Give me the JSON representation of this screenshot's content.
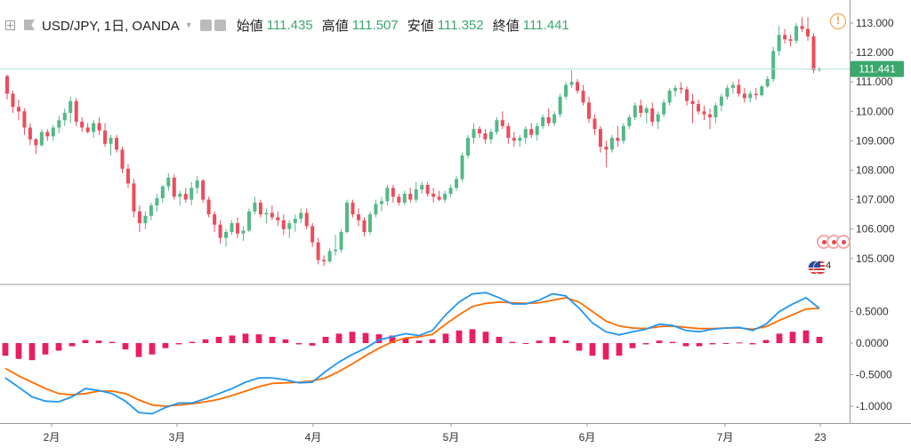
{
  "header": {
    "symbol": "USD/JPY, 1日, OANDA",
    "stats": [
      {
        "label": "始値",
        "value": "111.435"
      },
      {
        "label": "高値",
        "value": "111.507"
      },
      {
        "label": "安値",
        "value": "111.352"
      },
      {
        "label": "終値",
        "value": "111.441"
      }
    ]
  },
  "alert_icon": "!",
  "events": {
    "count": "4"
  },
  "colors": {
    "up": "#53b987",
    "down": "#eb4d5c",
    "macd": "#2196f3",
    "signal": "#ff6d00",
    "hist": "#e91e63",
    "last_price_line": "#b2dfdb",
    "last_price_tag": "#3aa76d"
  },
  "chart_data": [
    {
      "type": "candlestick",
      "y_ticks": [
        "113.000",
        "112.000",
        "111.000",
        "110.000",
        "109.000",
        "108.000",
        "107.000",
        "106.000",
        "105.000"
      ],
      "ylim": [
        104.8,
        113.3
      ],
      "x_ticks": [
        "2月",
        "3月",
        "4月",
        "5月",
        "6月",
        "7月",
        "23"
      ],
      "last_price": "111.441",
      "ohlc": [
        [
          111.2,
          111.25,
          110.4,
          110.6
        ],
        [
          110.6,
          110.7,
          109.95,
          110.15
        ],
        [
          110.15,
          110.4,
          109.7,
          110.0
        ],
        [
          110.0,
          110.1,
          109.2,
          109.45
        ],
        [
          109.45,
          109.6,
          108.85,
          109.05
        ],
        [
          109.05,
          109.1,
          108.55,
          108.85
        ],
        [
          108.85,
          109.4,
          108.8,
          109.3
        ],
        [
          109.3,
          109.4,
          109.0,
          109.15
        ],
        [
          109.15,
          109.55,
          109.0,
          109.45
        ],
        [
          109.45,
          109.85,
          109.25,
          109.7
        ],
        [
          109.7,
          110.1,
          109.5,
          109.95
        ],
        [
          109.95,
          110.5,
          109.6,
          110.35
        ],
        [
          110.35,
          110.45,
          109.5,
          109.65
        ],
        [
          109.65,
          109.8,
          109.3,
          109.45
        ],
        [
          109.45,
          109.6,
          109.25,
          109.3
        ],
        [
          109.3,
          109.7,
          109.1,
          109.6
        ],
        [
          109.6,
          109.8,
          109.2,
          109.35
        ],
        [
          109.35,
          109.6,
          108.8,
          108.9
        ],
        [
          108.9,
          109.2,
          108.5,
          109.1
        ],
        [
          109.1,
          109.2,
          108.6,
          108.7
        ],
        [
          108.7,
          108.8,
          107.9,
          108.05
        ],
        [
          108.05,
          108.2,
          107.4,
          107.55
        ],
        [
          107.55,
          107.7,
          106.4,
          106.6
        ],
        [
          106.6,
          106.8,
          105.9,
          106.2
        ],
        [
          106.2,
          106.6,
          106.0,
          106.45
        ],
        [
          106.45,
          106.9,
          106.3,
          106.8
        ],
        [
          106.8,
          107.2,
          106.6,
          107.05
        ],
        [
          107.05,
          107.5,
          106.9,
          107.45
        ],
        [
          107.45,
          107.9,
          107.3,
          107.75
        ],
        [
          107.75,
          107.85,
          107.0,
          107.1
        ],
        [
          107.1,
          107.3,
          106.8,
          107.2
        ],
        [
          107.2,
          107.4,
          106.9,
          107.0
        ],
        [
          107.0,
          107.6,
          106.8,
          107.4
        ],
        [
          107.4,
          107.8,
          107.2,
          107.65
        ],
        [
          107.65,
          107.7,
          106.9,
          107.0
        ],
        [
          107.0,
          107.1,
          106.4,
          106.5
        ],
        [
          106.5,
          106.6,
          105.9,
          106.15
        ],
        [
          106.15,
          106.3,
          105.5,
          105.7
        ],
        [
          105.7,
          106.0,
          105.4,
          105.9
        ],
        [
          105.9,
          106.3,
          105.8,
          106.2
        ],
        [
          106.2,
          106.4,
          105.7,
          105.85
        ],
        [
          105.85,
          106.1,
          105.6,
          105.95
        ],
        [
          105.95,
          106.7,
          105.9,
          106.6
        ],
        [
          106.6,
          107.1,
          106.5,
          106.9
        ],
        [
          106.9,
          107.0,
          106.4,
          106.5
        ],
        [
          106.5,
          106.7,
          106.2,
          106.55
        ],
        [
          106.55,
          106.8,
          106.3,
          106.4
        ],
        [
          106.4,
          106.6,
          106.1,
          106.3
        ],
        [
          106.3,
          106.5,
          105.8,
          106.0
        ],
        [
          106.0,
          106.3,
          105.7,
          106.2
        ],
        [
          106.2,
          106.5,
          105.9,
          106.35
        ],
        [
          106.35,
          106.7,
          106.2,
          106.55
        ],
        [
          106.55,
          106.7,
          106.0,
          106.1
        ],
        [
          106.1,
          106.2,
          105.4,
          105.55
        ],
        [
          105.55,
          105.7,
          104.8,
          104.95
        ],
        [
          104.95,
          105.1,
          104.75,
          104.9
        ],
        [
          104.9,
          105.35,
          104.85,
          105.25
        ],
        [
          105.25,
          105.8,
          105.1,
          105.3
        ],
        [
          105.3,
          106.0,
          105.2,
          105.9
        ],
        [
          105.9,
          107.0,
          105.85,
          106.9
        ],
        [
          106.9,
          107.0,
          106.4,
          106.5
        ],
        [
          106.5,
          106.7,
          106.1,
          106.3
        ],
        [
          106.3,
          106.4,
          105.75,
          105.9
        ],
        [
          105.9,
          106.6,
          105.8,
          106.5
        ],
        [
          106.5,
          107.0,
          106.4,
          106.85
        ],
        [
          106.85,
          107.1,
          106.6,
          106.95
        ],
        [
          106.95,
          107.5,
          106.8,
          107.4
        ],
        [
          107.4,
          107.5,
          106.9,
          107.1
        ],
        [
          107.1,
          107.2,
          106.8,
          106.9
        ],
        [
          106.9,
          107.3,
          106.8,
          107.2
        ],
        [
          107.2,
          107.4,
          106.9,
          107.0
        ],
        [
          107.0,
          107.6,
          106.9,
          107.35
        ],
        [
          107.35,
          107.6,
          107.2,
          107.5
        ],
        [
          107.5,
          107.6,
          107.1,
          107.2
        ],
        [
          107.2,
          107.4,
          106.9,
          107.1
        ],
        [
          107.1,
          107.3,
          106.95,
          107.0
        ],
        [
          107.0,
          107.3,
          106.9,
          107.2
        ],
        [
          107.2,
          107.5,
          107.1,
          107.4
        ],
        [
          107.4,
          107.8,
          107.3,
          107.7
        ],
        [
          107.7,
          108.6,
          107.6,
          108.5
        ],
        [
          108.5,
          109.2,
          108.4,
          109.1
        ],
        [
          109.1,
          109.6,
          108.9,
          109.4
        ],
        [
          109.4,
          109.5,
          109.1,
          109.25
        ],
        [
          109.25,
          109.4,
          108.9,
          109.05
        ],
        [
          109.05,
          109.4,
          108.9,
          109.3
        ],
        [
          109.3,
          109.8,
          109.2,
          109.7
        ],
        [
          109.7,
          110.0,
          109.4,
          109.5
        ],
        [
          109.5,
          109.6,
          108.9,
          109.1
        ],
        [
          109.1,
          109.3,
          108.8,
          109.0
        ],
        [
          109.0,
          109.2,
          108.8,
          109.1
        ],
        [
          109.1,
          109.5,
          108.9,
          109.4
        ],
        [
          109.4,
          109.6,
          109.1,
          109.2
        ],
        [
          109.2,
          109.6,
          109.0,
          109.5
        ],
        [
          109.5,
          109.9,
          109.4,
          109.8
        ],
        [
          109.8,
          110.1,
          109.5,
          109.6
        ],
        [
          109.6,
          110.0,
          109.5,
          109.9
        ],
        [
          109.9,
          110.6,
          109.8,
          110.5
        ],
        [
          110.5,
          111.0,
          110.4,
          110.9
        ],
        [
          110.9,
          111.4,
          110.8,
          111.0
        ],
        [
          111.0,
          111.1,
          110.6,
          110.7
        ],
        [
          110.7,
          110.9,
          110.2,
          110.3
        ],
        [
          110.3,
          110.5,
          109.6,
          109.75
        ],
        [
          109.75,
          109.9,
          109.2,
          109.4
        ],
        [
          109.4,
          109.5,
          108.6,
          108.8
        ],
        [
          108.8,
          109.0,
          108.1,
          108.7
        ],
        [
          108.7,
          109.2,
          108.6,
          109.1
        ],
        [
          109.1,
          109.5,
          108.8,
          109.0
        ],
        [
          109.0,
          109.6,
          108.9,
          109.5
        ],
        [
          109.5,
          109.9,
          109.4,
          109.8
        ],
        [
          109.8,
          110.3,
          109.7,
          110.2
        ],
        [
          110.2,
          110.4,
          109.8,
          109.95
        ],
        [
          109.95,
          110.2,
          109.6,
          110.1
        ],
        [
          110.1,
          110.3,
          109.5,
          109.65
        ],
        [
          109.65,
          110.0,
          109.4,
          109.9
        ],
        [
          109.9,
          110.4,
          109.8,
          110.3
        ],
        [
          110.3,
          110.8,
          110.2,
          110.7
        ],
        [
          110.7,
          110.9,
          110.5,
          110.8
        ],
        [
          110.8,
          111.0,
          110.6,
          110.75
        ],
        [
          110.75,
          110.85,
          110.2,
          110.35
        ],
        [
          110.35,
          110.6,
          109.6,
          110.25
        ],
        [
          110.25,
          110.4,
          109.9,
          110.0
        ],
        [
          110.0,
          110.2,
          109.7,
          109.9
        ],
        [
          109.9,
          110.1,
          109.4,
          109.8
        ],
        [
          109.8,
          110.3,
          109.6,
          110.2
        ],
        [
          110.2,
          110.6,
          110.0,
          110.5
        ],
        [
          110.5,
          110.9,
          110.4,
          110.8
        ],
        [
          110.8,
          111.0,
          110.6,
          110.9
        ],
        [
          110.9,
          111.1,
          110.5,
          110.6
        ],
        [
          110.6,
          110.8,
          110.3,
          110.45
        ],
        [
          110.45,
          110.7,
          110.3,
          110.6
        ],
        [
          110.6,
          110.8,
          110.4,
          110.55
        ],
        [
          110.55,
          110.9,
          110.5,
          110.85
        ],
        [
          110.85,
          111.2,
          110.8,
          111.1
        ],
        [
          111.1,
          112.2,
          111.0,
          112.05
        ],
        [
          112.05,
          112.9,
          111.9,
          112.6
        ],
        [
          112.6,
          112.8,
          112.3,
          112.45
        ],
        [
          112.45,
          112.6,
          112.2,
          112.4
        ],
        [
          112.4,
          113.0,
          112.3,
          112.9
        ],
        [
          112.9,
          113.2,
          112.7,
          112.8
        ],
        [
          112.8,
          113.2,
          112.4,
          112.55
        ],
        [
          112.55,
          112.65,
          111.3,
          111.4
        ],
        [
          111.435,
          111.507,
          111.352,
          111.441
        ]
      ]
    },
    {
      "type": "macd",
      "y_ticks": [
        "0.5000",
        "0.0000",
        "-0.5000",
        "-1.0000"
      ],
      "ylim": [
        -1.2,
        0.9
      ],
      "macd": [
        -0.55,
        -0.7,
        -0.85,
        -0.92,
        -0.93,
        -0.85,
        -0.72,
        -0.75,
        -0.8,
        -0.92,
        -1.1,
        -1.12,
        -1.02,
        -0.95,
        -0.95,
        -0.88,
        -0.8,
        -0.72,
        -0.62,
        -0.55,
        -0.55,
        -0.58,
        -0.63,
        -0.62,
        -0.45,
        -0.3,
        -0.18,
        -0.08,
        0.05,
        0.1,
        0.15,
        0.12,
        0.2,
        0.45,
        0.65,
        0.78,
        0.8,
        0.72,
        0.62,
        0.62,
        0.68,
        0.78,
        0.75,
        0.55,
        0.32,
        0.18,
        0.13,
        0.18,
        0.22,
        0.3,
        0.28,
        0.2,
        0.18,
        0.22,
        0.24,
        0.25,
        0.2,
        0.3,
        0.5,
        0.62,
        0.72,
        0.55
      ],
      "signal": [
        -0.4,
        -0.52,
        -0.62,
        -0.72,
        -0.8,
        -0.82,
        -0.8,
        -0.76,
        -0.76,
        -0.8,
        -0.9,
        -0.98,
        -1.0,
        -0.98,
        -0.96,
        -0.93,
        -0.89,
        -0.83,
        -0.76,
        -0.69,
        -0.64,
        -0.63,
        -0.62,
        -0.6,
        -0.55,
        -0.45,
        -0.33,
        -0.2,
        -0.08,
        0.02,
        0.08,
        0.1,
        0.14,
        0.3,
        0.45,
        0.58,
        0.63,
        0.65,
        0.64,
        0.63,
        0.64,
        0.68,
        0.72,
        0.65,
        0.5,
        0.35,
        0.27,
        0.24,
        0.23,
        0.26,
        0.27,
        0.25,
        0.23,
        0.23,
        0.24,
        0.24,
        0.22,
        0.26,
        0.36,
        0.45,
        0.54,
        0.55
      ],
      "hist": [
        -0.2,
        -0.25,
        -0.27,
        -0.18,
        -0.12,
        -0.05,
        0.05,
        0.04,
        0.02,
        -0.1,
        -0.22,
        -0.18,
        -0.08,
        -0.02,
        0.02,
        0.06,
        0.1,
        0.12,
        0.15,
        0.14,
        0.1,
        0.06,
        -0.02,
        -0.04,
        0.1,
        0.15,
        0.18,
        0.16,
        0.14,
        0.12,
        0.08,
        0.04,
        0.06,
        0.15,
        0.2,
        0.22,
        0.18,
        0.1,
        0.02,
        -0.01,
        0.04,
        0.1,
        0.04,
        -0.12,
        -0.2,
        -0.26,
        -0.2,
        -0.08,
        -0.02,
        0.04,
        0.02,
        -0.05,
        -0.05,
        -0.02,
        0.0,
        0.01,
        -0.02,
        0.05,
        0.15,
        0.18,
        0.2,
        0.1
      ]
    }
  ]
}
